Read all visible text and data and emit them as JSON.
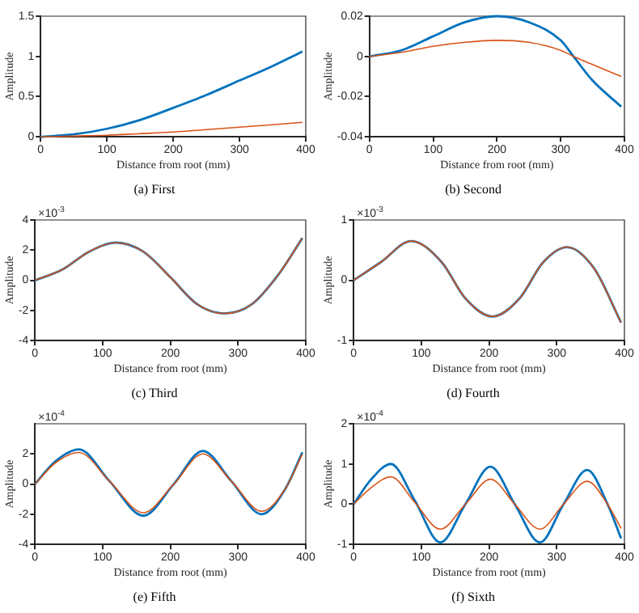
{
  "chart_data": [
    {
      "type": "line",
      "title": "(a) First",
      "xlabel": "Distance from root (mm)",
      "ylabel": "Amplitude",
      "xlim": [
        0,
        400
      ],
      "xticks": [
        0,
        100,
        200,
        300,
        400
      ],
      "ylim": [
        0,
        1.5
      ],
      "yticks": [
        0,
        0.5,
        1,
        1.5
      ],
      "grid": false,
      "x": [
        0,
        50,
        100,
        150,
        200,
        250,
        300,
        350,
        395
      ],
      "series": [
        {
          "color": "#0072bd",
          "values": [
            0,
            0.03,
            0.1,
            0.21,
            0.36,
            0.52,
            0.7,
            0.88,
            1.06
          ]
        },
        {
          "color": "#d95319",
          "values": [
            0,
            0.01,
            0.02,
            0.04,
            0.06,
            0.09,
            0.12,
            0.15,
            0.18
          ]
        }
      ]
    },
    {
      "type": "line",
      "title": "(b) Second",
      "xlabel": "Distance from root (mm)",
      "ylabel": "Amplitude",
      "xlim": [
        0,
        400
      ],
      "xticks": [
        0,
        100,
        200,
        300,
        400
      ],
      "ylim": [
        -0.04,
        0.02
      ],
      "yticks": [
        -0.04,
        -0.02,
        0,
        0.02
      ],
      "grid": false,
      "x": [
        0,
        50,
        100,
        150,
        200,
        250,
        300,
        320,
        350,
        395
      ],
      "series": [
        {
          "color": "#0072bd",
          "values": [
            0,
            0.003,
            0.01,
            0.017,
            0.02,
            0.017,
            0.008,
            0,
            -0.012,
            -0.025
          ]
        },
        {
          "color": "#d95319",
          "values": [
            0,
            0.002,
            0.005,
            0.007,
            0.008,
            0.007,
            0.003,
            0,
            -0.004,
            -0.01
          ]
        }
      ]
    },
    {
      "type": "line",
      "title": "(c) Third",
      "xlabel": "Distance from root (mm)",
      "ylabel": "Amplitude",
      "annotations": [
        "×10$^{-3}$"
      ],
      "xlim": [
        0,
        400
      ],
      "xticks": [
        0,
        100,
        200,
        300,
        400
      ],
      "ylim": [
        -4,
        4
      ],
      "yticks": [
        -4,
        -2,
        0,
        2,
        4
      ],
      "grid": false,
      "x": [
        0,
        40,
        80,
        120,
        160,
        200,
        240,
        280,
        320,
        360,
        395
      ],
      "series": [
        {
          "color": "#0072bd",
          "values": [
            0,
            0.7,
            1.9,
            2.5,
            1.9,
            0.2,
            -1.6,
            -2.2,
            -1.6,
            0.4,
            2.8
          ]
        },
        {
          "color": "#d95319",
          "values": [
            0,
            0.7,
            1.9,
            2.5,
            1.9,
            0.2,
            -1.6,
            -2.2,
            -1.6,
            0.4,
            2.8
          ]
        }
      ]
    },
    {
      "type": "line",
      "title": "(d) Fourth",
      "xlabel": "Distance from root (mm)",
      "ylabel": "Amplitude",
      "annotations": [
        "×10$^{-3}$"
      ],
      "xlim": [
        0,
        400
      ],
      "xticks": [
        0,
        100,
        200,
        300,
        400
      ],
      "ylim": [
        -1,
        1
      ],
      "yticks": [
        -1,
        0,
        1
      ],
      "grid": false,
      "x": [
        0,
        40,
        85,
        130,
        165,
        205,
        245,
        280,
        315,
        355,
        395
      ],
      "series": [
        {
          "color": "#0072bd",
          "values": [
            0,
            0.3,
            0.65,
            0.3,
            -0.3,
            -0.6,
            -0.3,
            0.3,
            0.55,
            0.2,
            -0.7
          ]
        },
        {
          "color": "#d95319",
          "values": [
            0,
            0.3,
            0.65,
            0.3,
            -0.3,
            -0.6,
            -0.3,
            0.3,
            0.55,
            0.2,
            -0.7
          ]
        }
      ]
    },
    {
      "type": "line",
      "title": "(e) Fifth",
      "xlabel": "Distance from root (mm)",
      "ylabel": "Amplitude",
      "annotations": [
        "×10$^{-4}$"
      ],
      "xlim": [
        0,
        400
      ],
      "xticks": [
        0,
        100,
        200,
        300,
        400
      ],
      "ylim": [
        -4,
        4
      ],
      "yticks": [
        -4,
        -2,
        0,
        2
      ],
      "grid": false,
      "x": [
        0,
        30,
        65,
        110,
        160,
        205,
        248,
        290,
        335,
        370,
        395
      ],
      "series": [
        {
          "color": "#0072bd",
          "values": [
            0,
            1.5,
            2.3,
            0.2,
            -2.1,
            0,
            2.2,
            0.2,
            -2,
            -0.3,
            2.1
          ]
        },
        {
          "color": "#d95319",
          "values": [
            0,
            1.4,
            2.1,
            0.2,
            -1.9,
            0,
            2,
            0.2,
            -1.8,
            -0.3,
            2
          ]
        }
      ]
    },
    {
      "type": "line",
      "title": "(f) Sixth",
      "xlabel": "Distance from root (mm)",
      "ylabel": "Amplitude",
      "annotations": [
        "×10$^{-4}$"
      ],
      "xlim": [
        0,
        400
      ],
      "xticks": [
        0,
        100,
        200,
        300,
        400
      ],
      "ylim": [
        -1,
        2
      ],
      "yticks": [
        -1,
        0,
        1,
        2
      ],
      "grid": false,
      "x": [
        0,
        25,
        55,
        90,
        128,
        165,
        202,
        238,
        275,
        310,
        345,
        375,
        395
      ],
      "series": [
        {
          "color": "#0072bd",
          "values": [
            0,
            0.6,
            1,
            0.1,
            -0.95,
            0,
            0.93,
            0,
            -0.95,
            0,
            0.85,
            0,
            -0.85
          ]
        },
        {
          "color": "#d95319",
          "values": [
            0,
            0.4,
            0.68,
            0.05,
            -0.62,
            0,
            0.62,
            0,
            -0.62,
            0,
            0.57,
            0,
            -0.6
          ]
        }
      ]
    }
  ]
}
